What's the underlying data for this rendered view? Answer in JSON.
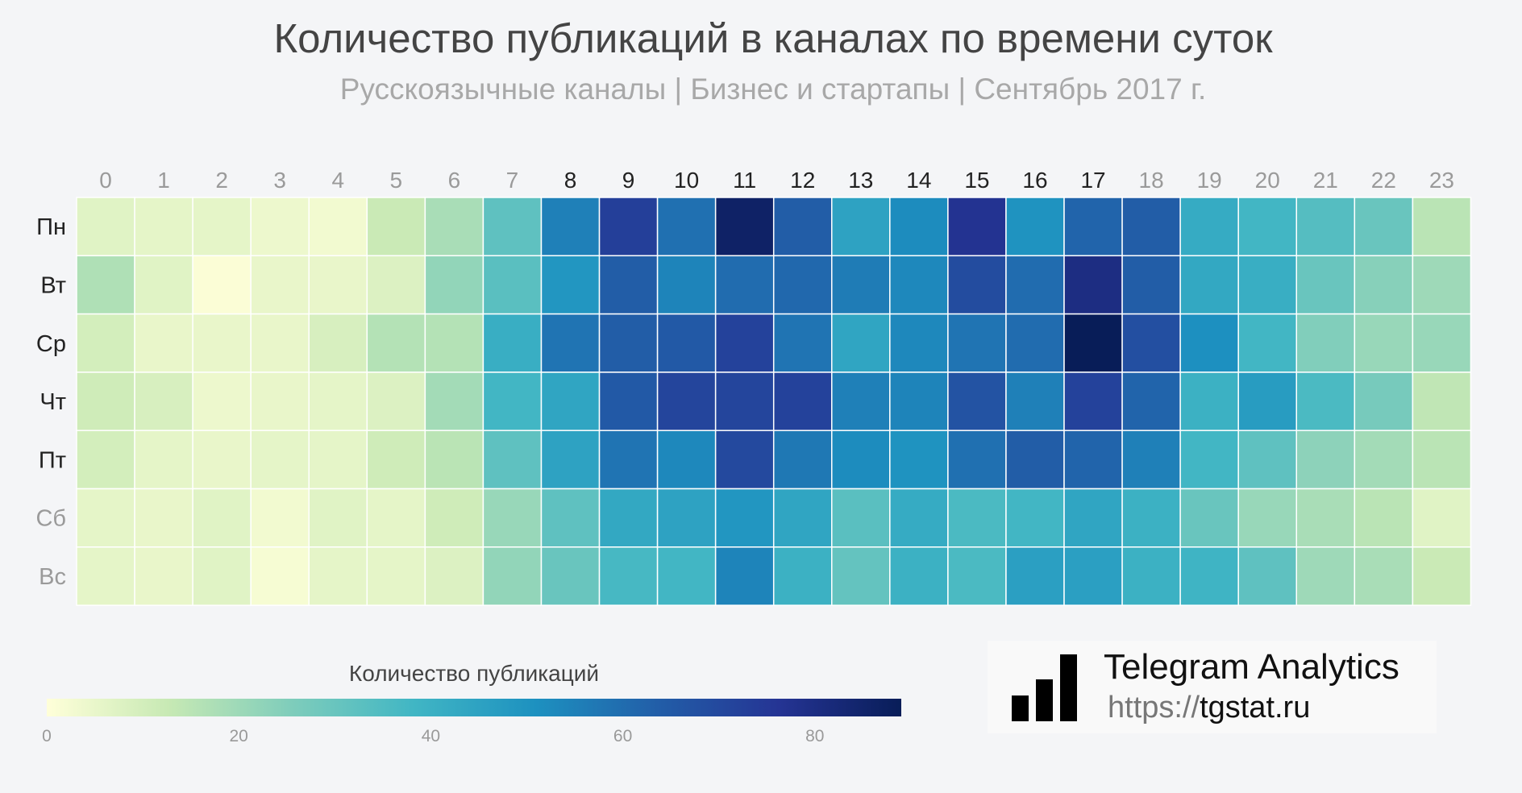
{
  "chart_data": {
    "type": "heatmap",
    "title": "Количество публикаций в каналах по времени суток",
    "subtitle": "Русскоязычные каналы | Бизнес и стартапы | Сентябрь 2017 г.",
    "x": [
      "0",
      "1",
      "2",
      "3",
      "4",
      "5",
      "6",
      "7",
      "8",
      "9",
      "10",
      "11",
      "12",
      "13",
      "14",
      "15",
      "16",
      "17",
      "18",
      "19",
      "20",
      "21",
      "22",
      "23"
    ],
    "y": [
      "Пн",
      "Вт",
      "Ср",
      "Чт",
      "Пт",
      "Сб",
      "Вс"
    ],
    "values": [
      [
        7,
        6,
        6,
        4,
        3,
        12,
        18,
        32,
        55,
        73,
        59,
        86,
        64,
        45,
        52,
        77,
        50,
        62,
        64,
        42,
        38,
        34,
        30,
        15
      ],
      [
        17,
        7,
        1,
        5,
        5,
        8,
        22,
        33,
        49,
        64,
        54,
        60,
        61,
        56,
        53,
        69,
        60,
        80,
        64,
        43,
        41,
        30,
        24,
        20
      ],
      [
        10,
        5,
        5,
        5,
        9,
        16,
        16,
        41,
        58,
        64,
        65,
        72,
        58,
        44,
        53,
        58,
        60,
        89,
        68,
        51,
        38,
        25,
        21,
        21
      ],
      [
        11,
        9,
        4,
        5,
        6,
        8,
        19,
        38,
        44,
        65,
        71,
        71,
        72,
        55,
        54,
        67,
        55,
        72,
        62,
        40,
        47,
        36,
        27,
        14
      ],
      [
        10,
        6,
        5,
        6,
        6,
        11,
        15,
        32,
        45,
        58,
        53,
        70,
        57,
        52,
        50,
        59,
        64,
        62,
        55,
        38,
        32,
        23,
        19,
        15
      ],
      [
        6,
        5,
        7,
        3,
        7,
        6,
        11,
        21,
        32,
        43,
        45,
        49,
        44,
        33,
        42,
        36,
        38,
        44,
        40,
        30,
        21,
        18,
        15,
        7
      ],
      [
        6,
        5,
        7,
        2,
        6,
        6,
        8,
        22,
        30,
        37,
        38,
        54,
        40,
        31,
        40,
        36,
        46,
        46,
        40,
        39,
        32,
        20,
        18,
        12
      ]
    ],
    "colorbar": {
      "label": "Количество публикаций",
      "min": 0,
      "max": 89,
      "ticks": [
        "0",
        "20",
        "40",
        "60",
        "80"
      ],
      "colors": [
        "#ffffd9",
        "#c7e9b4",
        "#7fcdbb",
        "#41b6c4",
        "#1d91c0",
        "#225ea8",
        "#253494",
        "#081d58"
      ]
    },
    "highlighted_x": [
      "8",
      "9",
      "10",
      "11",
      "12",
      "13",
      "14",
      "15",
      "16",
      "17"
    ],
    "highlighted_y": [
      "Пн",
      "Вт",
      "Ср",
      "Чт",
      "Пт"
    ]
  },
  "brand": {
    "name": "Telegram Analytics",
    "url_protocol": "https://",
    "url_host": "tgstat.ru",
    "logo_icon": "signal-bars-icon"
  }
}
